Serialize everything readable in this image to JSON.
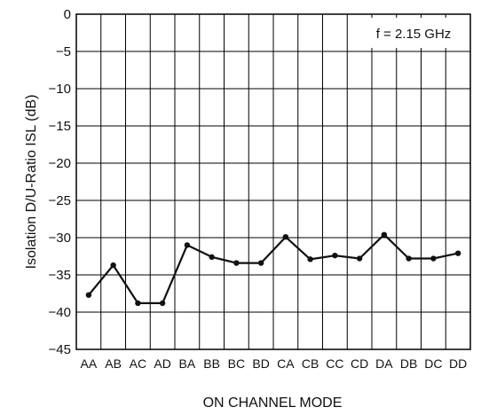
{
  "chart_data": {
    "type": "line",
    "title": "",
    "xlabel": "ON CHANNEL MODE",
    "ylabel": "Isolation D/U-Ratio  ISL (dB)",
    "annotation": "f = 2.15 GHz",
    "ylim": [
      -45,
      0
    ],
    "yticks": [
      0,
      -5,
      -10,
      -15,
      -20,
      -25,
      -30,
      -35,
      -40,
      -45
    ],
    "ytick_labels": [
      "0",
      "−5",
      "−10",
      "−15",
      "−20",
      "−25",
      "−30",
      "−35",
      "−40",
      "−45"
    ],
    "grid": true,
    "categories": [
      "AA",
      "AB",
      "AC",
      "AD",
      "BA",
      "BB",
      "BC",
      "BD",
      "CA",
      "CB",
      "CC",
      "CD",
      "DA",
      "DB",
      "DC",
      "DD"
    ],
    "series": [
      {
        "values": [
          -37.7,
          -33.7,
          -38.8,
          -38.8,
          -31.0,
          -32.6,
          -33.4,
          -33.4,
          -29.9,
          -32.9,
          -32.4,
          -32.8,
          -29.6,
          -32.8,
          -32.8,
          -32.1
        ]
      }
    ]
  }
}
